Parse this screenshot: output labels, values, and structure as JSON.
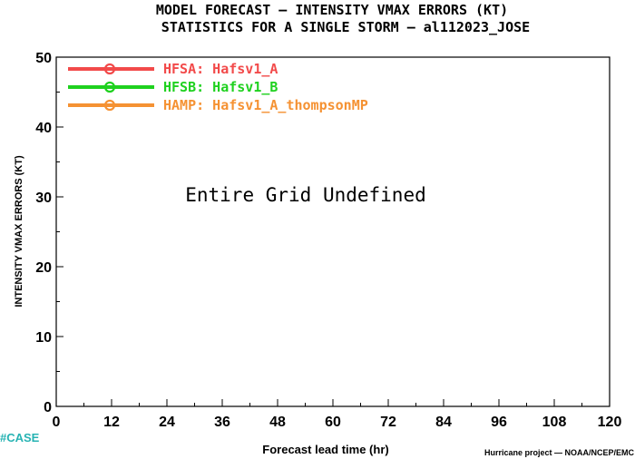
{
  "title_line1": "MODEL FORECAST — INTENSITY VMAX ERRORS (KT)",
  "title_line2": "STATISTICS FOR A SINGLE STORM — al112023_JOSE",
  "undefined_message": "Entire Grid Undefined",
  "case_label": "#CASE",
  "credit": "Hurricane project — NOAA/NCEP/EMC",
  "colors": {
    "case_label": "#27b3b3",
    "axis": "#000000"
  },
  "chart_data": {
    "type": "line",
    "title": "MODEL FORECAST — INTENSITY VMAX ERRORS (KT)",
    "subtitle": "STATISTICS FOR A SINGLE STORM — al112023_JOSE",
    "xlabel": "Forecast lead time (hr)",
    "ylabel": "INTENSITY VMAX ERRORS (KT)",
    "xlim": [
      0,
      120
    ],
    "ylim": [
      0,
      50
    ],
    "x_ticks": [
      "0",
      "12",
      "24",
      "36",
      "48",
      "60",
      "72",
      "84",
      "96",
      "108",
      "120"
    ],
    "y_ticks": [
      "0",
      "10",
      "20",
      "30",
      "40",
      "50"
    ],
    "grid": false,
    "legend_position": "top-left",
    "series": [
      {
        "name": "HFSA: Hafsv1_A",
        "color": "#f24a4a",
        "values": []
      },
      {
        "name": "HFSB: Hafsv1_B",
        "color": "#1fd11f",
        "values": []
      },
      {
        "name": "HAMP: Hafsv1_A_thompsonMP",
        "color": "#f59233",
        "values": []
      }
    ]
  }
}
